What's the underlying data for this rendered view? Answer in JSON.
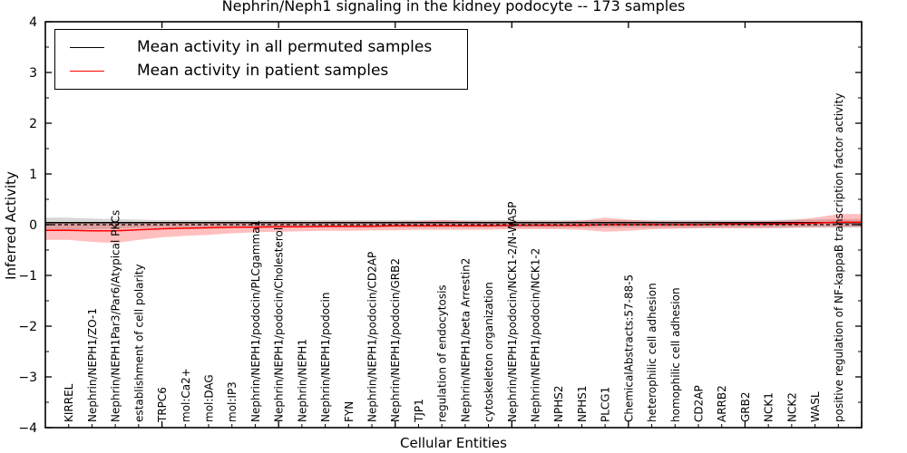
{
  "figure": {
    "title": "Nephrin/Neph1 signaling in the kidney podocyte -- 173 samples"
  },
  "chart_data": {
    "type": "line",
    "title": "Nephrin/Neph1 signaling in the kidney podocyte -- 173 samples",
    "xlabel": "Cellular Entities",
    "ylabel": "Inferred Activity",
    "ylim": [
      -4,
      4
    ],
    "grid": false,
    "legend_position": "upper left",
    "yticks": [
      4,
      3,
      2,
      1,
      0,
      -1,
      -2,
      -3,
      -4
    ],
    "yticklabels": [
      "4",
      "3",
      "2",
      "1",
      "0",
      "−1",
      "−2",
      "−3",
      "−4"
    ],
    "zero_line": {
      "value": 0,
      "style": "dashed",
      "color": "#000000"
    },
    "categories": [
      "KIRREL",
      "Nephrin/NEPH1/ZO-1",
      "Nephrin/NEPH1Par3/Par6/Atypical PKCs",
      "establishment of cell polarity",
      "TRPC6",
      "mol:Ca2+",
      "mol:DAG",
      "mol:IP3",
      "Nephrin/NEPH1/podocin/PLCgamma1",
      "Nephrin/NEPH1/podocin/Cholesterol",
      "Nephrin/NEPH1",
      "Nephrin/NEPH1/podocin",
      "FYN",
      "Nephrin/NEPH1/podocin/CD2AP",
      "Nephrin/NEPH1/podocin/GRB2",
      "TJP1",
      "regulation of endocytosis",
      "Nephrin/NEPH1/beta Arrestin2",
      "cytoskeleton organization",
      "Nephrin/NEPH1/podocin/NCK1-2/N-WASP",
      "Nephrin/NEPH1/podocin/NCK1-2",
      "NPHS2",
      "NPHS1",
      "PLCG1",
      "ChemicalAbstracts:57-88-5",
      "heterophilic cell adhesion",
      "homophilic cell adhesion",
      "CD2AP",
      "ARRB2",
      "GRB2",
      "NCK1",
      "NCK2",
      "WASL",
      "positive regulation of NF-kappaB transcription factor activity"
    ],
    "series": [
      {
        "name": "Mean activity in all permuted samples",
        "color": "#000000",
        "band_color": "#000000",
        "band_opacity": 0.16,
        "values": [
          0.04,
          0.04,
          0.04,
          0.04,
          0.04,
          0.04,
          0.04,
          0.04,
          0.04,
          0.04,
          0.04,
          0.04,
          0.04,
          0.04,
          0.04,
          0.04,
          0.04,
          0.04,
          0.04,
          0.04,
          0.04,
          0.04,
          0.04,
          0.04,
          0.04,
          0.04,
          0.04,
          0.04,
          0.04,
          0.04,
          0.04,
          0.04,
          0.04,
          0.04
        ],
        "band_upper": [
          0.14,
          0.12,
          0.11,
          0.1,
          0.09,
          0.09,
          0.09,
          0.09,
          0.09,
          0.09,
          0.09,
          0.09,
          0.09,
          0.09,
          0.09,
          0.09,
          0.09,
          0.09,
          0.09,
          0.09,
          0.09,
          0.09,
          0.09,
          0.09,
          0.09,
          0.09,
          0.09,
          0.09,
          0.09,
          0.09,
          0.09,
          0.1,
          0.1,
          0.11
        ],
        "band_lower": [
          -0.1,
          -0.09,
          -0.08,
          -0.07,
          -0.06,
          -0.06,
          -0.06,
          -0.06,
          -0.06,
          -0.06,
          -0.06,
          -0.06,
          -0.06,
          -0.06,
          -0.06,
          -0.06,
          -0.06,
          -0.06,
          -0.06,
          -0.06,
          -0.06,
          -0.06,
          -0.06,
          -0.06,
          -0.06,
          -0.06,
          -0.06,
          -0.06,
          -0.06,
          -0.06,
          -0.06,
          -0.06,
          -0.06,
          -0.06
        ]
      },
      {
        "name": "Mean activity in patient samples",
        "color": "#ff0000",
        "band_color": "#ff0000",
        "band_opacity": 0.25,
        "values": [
          -0.11,
          -0.12,
          -0.12,
          -0.1,
          -0.08,
          -0.07,
          -0.06,
          -0.05,
          -0.05,
          -0.04,
          -0.04,
          -0.03,
          -0.03,
          -0.03,
          -0.02,
          -0.02,
          -0.02,
          -0.02,
          -0.02,
          -0.01,
          -0.01,
          -0.01,
          -0.01,
          0.0,
          0.0,
          0.0,
          0.0,
          0.0,
          0.01,
          0.01,
          0.01,
          0.02,
          0.03,
          0.05
        ],
        "band_upper": [
          0.05,
          0.03,
          0.02,
          0.03,
          0.04,
          0.04,
          0.05,
          0.05,
          0.05,
          0.05,
          0.05,
          0.06,
          0.06,
          0.06,
          0.06,
          0.07,
          0.09,
          0.07,
          0.06,
          0.06,
          0.06,
          0.06,
          0.08,
          0.14,
          0.1,
          0.07,
          0.06,
          0.06,
          0.06,
          0.06,
          0.07,
          0.09,
          0.14,
          0.21
        ],
        "band_lower": [
          -0.3,
          -0.34,
          -0.36,
          -0.3,
          -0.25,
          -0.22,
          -0.2,
          -0.17,
          -0.15,
          -0.14,
          -0.13,
          -0.12,
          -0.12,
          -0.11,
          -0.11,
          -0.1,
          -0.1,
          -0.1,
          -0.1,
          -0.09,
          -0.09,
          -0.09,
          -0.1,
          -0.14,
          -0.12,
          -0.09,
          -0.08,
          -0.07,
          -0.07,
          -0.07,
          -0.07,
          -0.06,
          -0.05,
          -0.04
        ]
      }
    ]
  },
  "legend": {
    "items": [
      {
        "label": "Mean activity in all permuted samples",
        "color": "#000000"
      },
      {
        "label": "Mean activity in patient samples",
        "color": "#ff0000"
      }
    ]
  }
}
